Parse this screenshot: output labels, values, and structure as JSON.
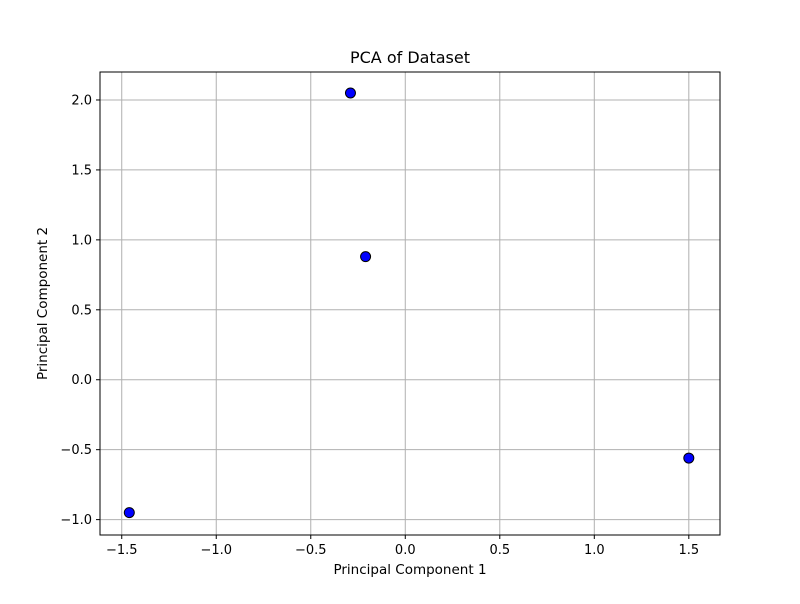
{
  "chart_data": {
    "type": "scatter",
    "title": "PCA of Dataset",
    "xlabel": "Principal Component 1",
    "ylabel": "Principal Component 2",
    "xlim": [
      -1.615,
      1.665
    ],
    "ylim": [
      -1.11,
      2.2
    ],
    "xticks": [
      -1.5,
      -1.0,
      -0.5,
      0.0,
      0.5,
      1.0,
      1.5
    ],
    "xtick_labels": [
      "−1.5",
      "−1.0",
      "−0.5",
      "0.0",
      "0.5",
      "1.0",
      "1.5"
    ],
    "yticks": [
      -1.0,
      -0.5,
      0.0,
      0.5,
      1.0,
      1.5,
      2.0
    ],
    "ytick_labels": [
      "−1.0",
      "−0.5",
      "0.0",
      "0.5",
      "1.0",
      "1.5",
      "2.0"
    ],
    "grid": true,
    "marker_color": "#0000ff",
    "marker_edge_color": "#000000",
    "series": [
      {
        "points": [
          {
            "x": -0.29,
            "y": 2.05
          },
          {
            "x": -0.21,
            "y": 0.88
          },
          {
            "x": 1.5,
            "y": -0.56
          },
          {
            "x": -1.46,
            "y": -0.95
          }
        ]
      }
    ]
  }
}
